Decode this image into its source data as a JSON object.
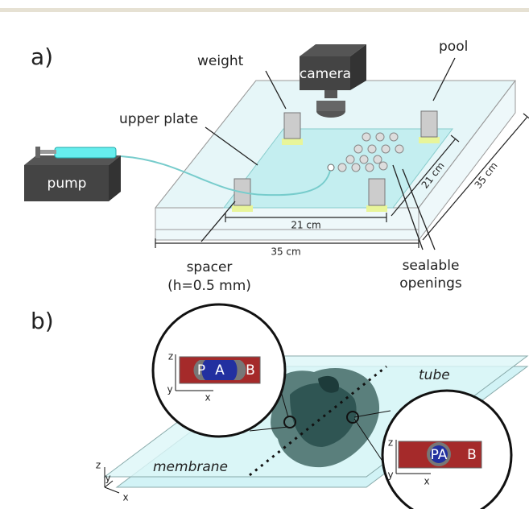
{
  "panel_a": {
    "label": "a)",
    "camera": "camera",
    "weight": "weight",
    "pool": "pool",
    "upper_plate": "upper plate",
    "pump": "pump",
    "inner_width": "21 cm",
    "inner_depth": "21 cm",
    "outer_depth": "35 cm",
    "outer_width": "35 cm",
    "spacer": "spacer",
    "spacer_height": "(h=0.5 mm)",
    "openings_line1": "sealable",
    "openings_line2": "openings"
  },
  "panel_b": {
    "label": "b)",
    "tube": "tube",
    "membrane": "membrane",
    "axes": {
      "z": "z",
      "y": "y",
      "x": "x"
    },
    "inset_left": {
      "z": "z",
      "y": "y",
      "x": "x",
      "P": "P",
      "A": "A",
      "B": "B"
    },
    "inset_right": {
      "z": "z",
      "y": "y",
      "x": "x",
      "PA": "PA",
      "B": "B"
    }
  }
}
